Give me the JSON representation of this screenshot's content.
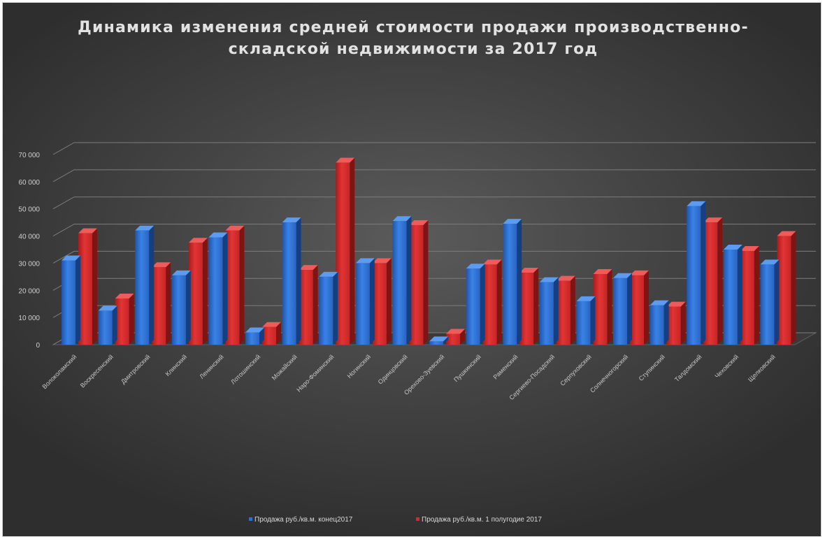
{
  "chart_data": {
    "type": "bar",
    "title_lines": [
      "Динамика изменения средней стоимости продажи производственно-",
      "складской недвижимости за 2017 год"
    ],
    "categories": [
      "Волоколамский",
      "Воскресенский",
      "Дмитровский",
      "Клинский",
      "Ленинский",
      "Лотошинский",
      "Можайский",
      "Наро-Фоминский",
      "Ногинский",
      "Одинцовский",
      "Орехово-Зуевский",
      "Пушкинский",
      "Раменский",
      "Сергиево-Посадский",
      "Серпуховский",
      "Солнечногорский",
      "Ступинский",
      "Талдомский",
      "Чеховский",
      "Щелковский"
    ],
    "series": [
      {
        "name": "Продажа руб./кв.м. конец2017",
        "color": "#2e6fd0",
        "values": [
          31000,
          12500,
          42000,
          25500,
          39500,
          4500,
          45000,
          25000,
          30000,
          45500,
          1200,
          28000,
          44500,
          23000,
          16000,
          24500,
          14500,
          51000,
          35000,
          29500
        ]
      },
      {
        "name": "Продажа руб./кв.м. 1 полугодие 2017",
        "color": "#d42a2a",
        "values": [
          41000,
          17000,
          28500,
          37500,
          42000,
          6500,
          27500,
          67000,
          30000,
          44000,
          4000,
          29500,
          26500,
          23500,
          26000,
          25500,
          14000,
          45000,
          34500,
          40000
        ]
      }
    ],
    "yticks": [
      "0",
      "10 000",
      "20 000",
      "30 000",
      "40 000",
      "50 000",
      "60 000",
      "70 000"
    ],
    "ylim": [
      0,
      70000
    ],
    "grid": true,
    "legend_position": "bottom"
  }
}
